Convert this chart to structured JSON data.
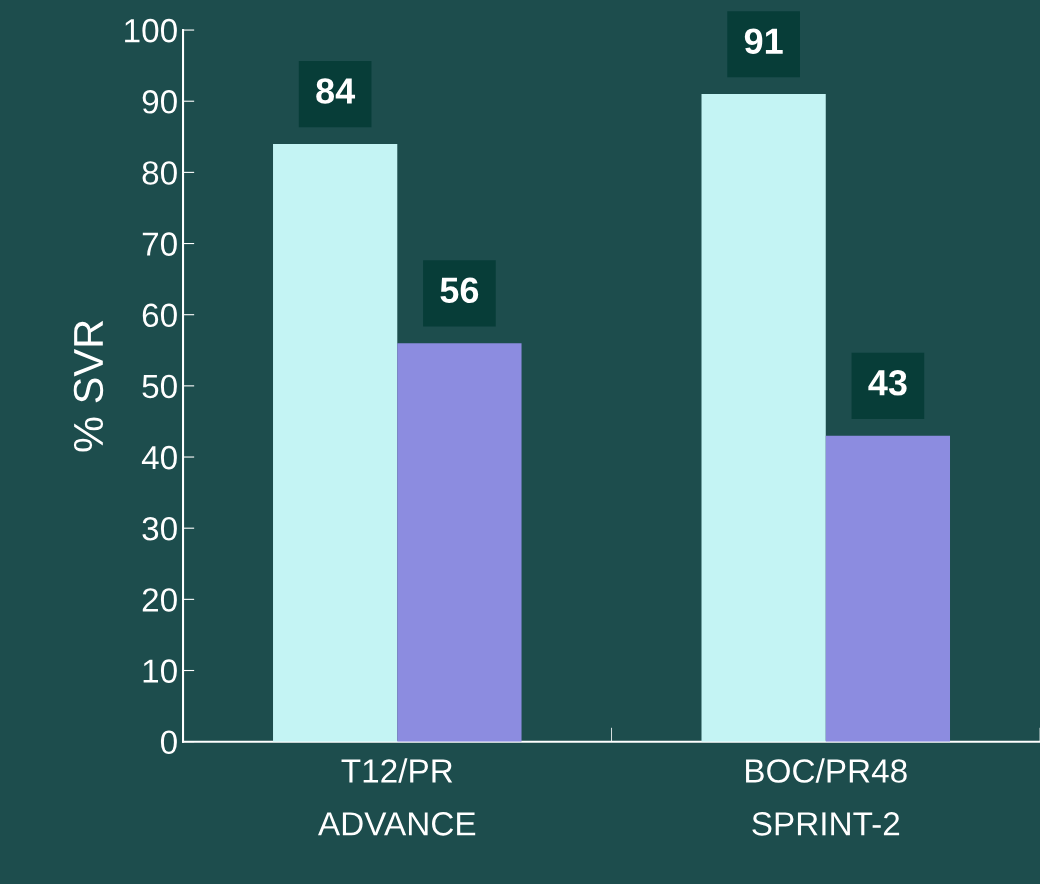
{
  "chart_data": {
    "type": "bar",
    "ylabel": "% SVR",
    "categories": [
      "T12/PR\nADVANCE",
      "BOC/PR48\nSPRINT-2"
    ],
    "series": [
      {
        "color": "#c4f4f4",
        "values": [
          84,
          91
        ]
      },
      {
        "color": "#8c8ce0",
        "values": [
          56,
          43
        ]
      }
    ],
    "ylim": [
      0,
      100
    ],
    "yticks": [
      0,
      10,
      20,
      30,
      40,
      50,
      60,
      70,
      80,
      90,
      100
    ],
    "data_labels": true,
    "grid": false,
    "legend": false
  }
}
